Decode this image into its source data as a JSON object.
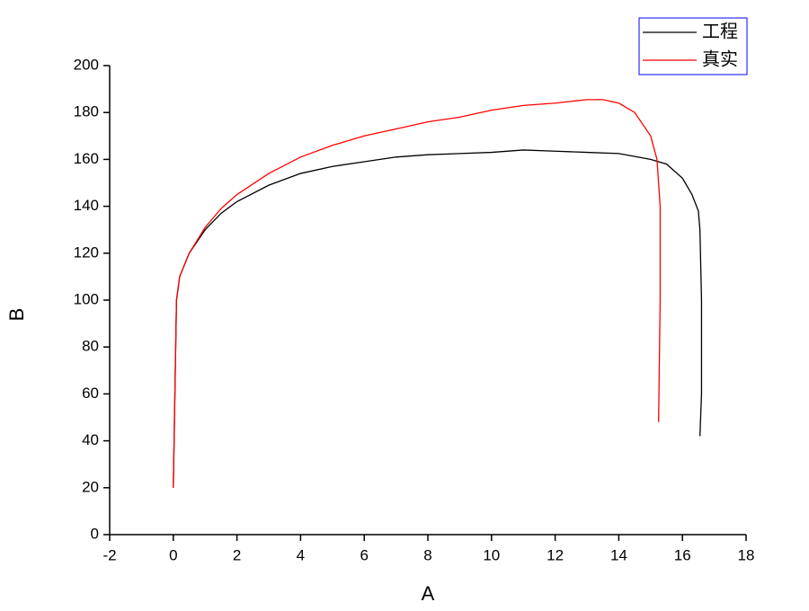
{
  "chart_data": {
    "type": "line",
    "x_label": "A",
    "y_label": "B",
    "xlim": [
      -2,
      18
    ],
    "xticks": [
      -2,
      0,
      2,
      4,
      6,
      8,
      10,
      12,
      14,
      16,
      18
    ],
    "ylim": [
      0,
      200
    ],
    "yticks": [
      0,
      20,
      40,
      60,
      80,
      100,
      120,
      140,
      160,
      180,
      200
    ],
    "legend": "top-right",
    "series": [
      {
        "name": "工程",
        "color": "#000000",
        "x": [
          0,
          0.05,
          0.1,
          0.2,
          0.5,
          1,
          1.5,
          2,
          3,
          4,
          5,
          6,
          7,
          8,
          9,
          10,
          11,
          12,
          13,
          14,
          15,
          15.5,
          16,
          16.3,
          16.5,
          16.55,
          16.6,
          16.6,
          16.55
        ],
        "values": [
          20,
          60,
          100,
          110,
          120,
          130,
          137,
          142,
          149,
          154,
          157,
          159,
          161,
          162,
          162.5,
          163,
          164,
          163.5,
          163,
          162.5,
          160,
          158,
          152,
          145,
          138,
          130,
          100,
          60,
          42
        ]
      },
      {
        "name": "真实",
        "color": "#ff0000",
        "x": [
          0,
          0.05,
          0.1,
          0.2,
          0.5,
          1,
          1.5,
          2,
          3,
          4,
          5,
          6,
          7,
          8,
          9,
          10,
          11,
          12,
          13,
          13.5,
          14,
          14.5,
          15,
          15.2,
          15.3,
          15.3,
          15.25
        ],
        "values": [
          20,
          60,
          100,
          110,
          120,
          131,
          139,
          145,
          154,
          161,
          166,
          170,
          173,
          176,
          178,
          181,
          183,
          184,
          185.5,
          185.5,
          184,
          180,
          170,
          160,
          140,
          100,
          48
        ]
      }
    ]
  }
}
